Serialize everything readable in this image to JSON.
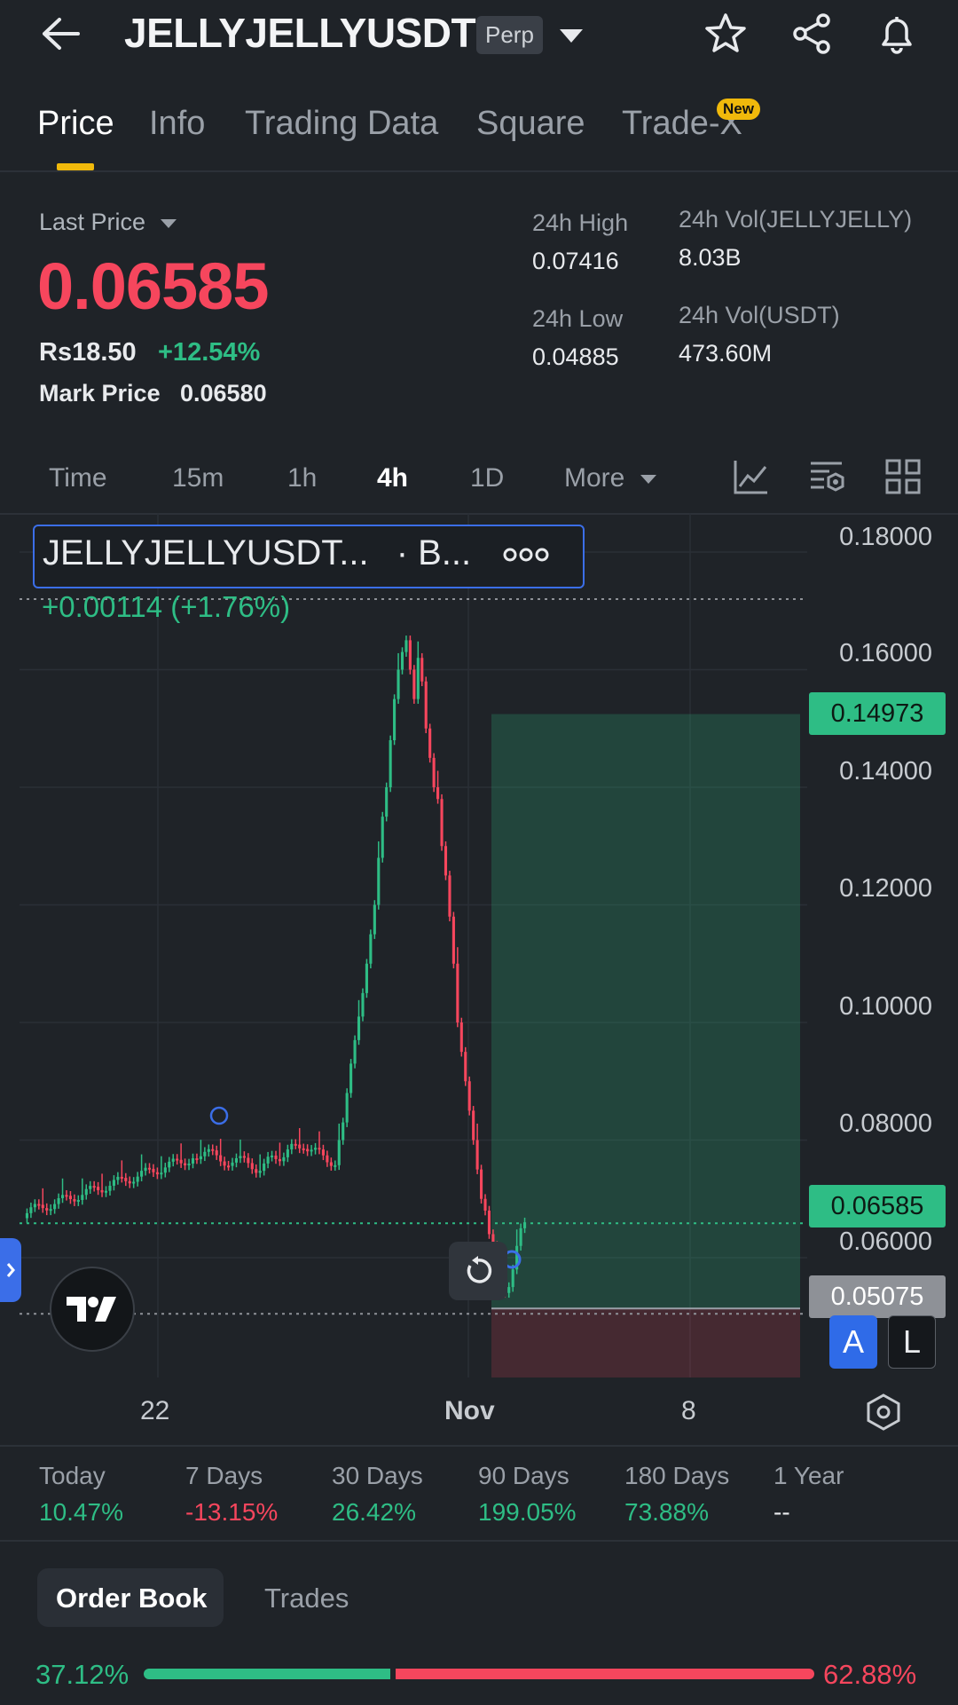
{
  "header": {
    "symbol": "JELLYJELLYUSDT",
    "badge": "Perp",
    "icons": [
      "back-arrow-icon",
      "chevron-down-icon",
      "star-icon",
      "share-icon",
      "bell-icon"
    ]
  },
  "tabs": [
    {
      "label": "Price",
      "active": true
    },
    {
      "label": "Info"
    },
    {
      "label": "Trading Data"
    },
    {
      "label": "Square"
    },
    {
      "label": "Trade-X",
      "badge": "New"
    }
  ],
  "ticker": {
    "last_price_label": "Last Price",
    "last_price": "0.06585",
    "fiat_price": "Rs18.50",
    "change_pct": "+12.54%",
    "mark_price_label": "Mark Price",
    "mark_price": "0.06580",
    "high_label": "24h High",
    "high": "0.07416",
    "low_label": "24h Low",
    "low": "0.04885",
    "vol_base_label": "24h Vol(JELLYJELLY)",
    "vol_base": "8.03B",
    "vol_quote_label": "24h Vol(USDT)",
    "vol_quote": "473.60M"
  },
  "intervals": {
    "items": [
      "Time",
      "15m",
      "1h",
      "4h",
      "1D"
    ],
    "active": "4h",
    "more_label": "More"
  },
  "chart": {
    "symbol_label": "JELLYJELLYUSDT...",
    "exchange_label": "· B...",
    "change_label": "+0.00114 (+1.76%)",
    "y_ticks": [
      "0.18000",
      "0.16000",
      "0.14000",
      "0.12000",
      "0.10000",
      "0.08000",
      "0.06000"
    ],
    "tag_target": "0.14973",
    "tag_current": "0.06585",
    "tag_stop": "0.05075",
    "x_ticks": [
      "22",
      "Nov",
      "8"
    ],
    "scale_auto": "A",
    "scale_log": "L",
    "colors": {
      "up": "#2ebd85",
      "down": "#f6465d"
    }
  },
  "chart_data": {
    "type": "candlestick",
    "y_range": [
      0.045,
      0.185
    ],
    "price_levels": {
      "target": 0.14973,
      "current": 0.06585,
      "stop": 0.05075
    },
    "x_ticks": [
      "22",
      "Nov",
      "8"
    ]
  },
  "returns": [
    {
      "label": "Today",
      "value": "10.47%",
      "color": "#2ebd85"
    },
    {
      "label": "7 Days",
      "value": "-13.15%",
      "color": "#f6465d"
    },
    {
      "label": "30 Days",
      "value": "26.42%",
      "color": "#2ebd85"
    },
    {
      "label": "90 Days",
      "value": "199.05%",
      "color": "#2ebd85"
    },
    {
      "label": "180 Days",
      "value": "73.88%",
      "color": "#2ebd85"
    },
    {
      "label": "1 Year",
      "value": "--",
      "color": "#e8eaed"
    }
  ],
  "orderbook": {
    "tab_active": "Order Book",
    "tab_other": "Trades",
    "bid_pct": "37.12%",
    "ask_pct": "62.88%",
    "bid_ratio": 0.3712
  }
}
